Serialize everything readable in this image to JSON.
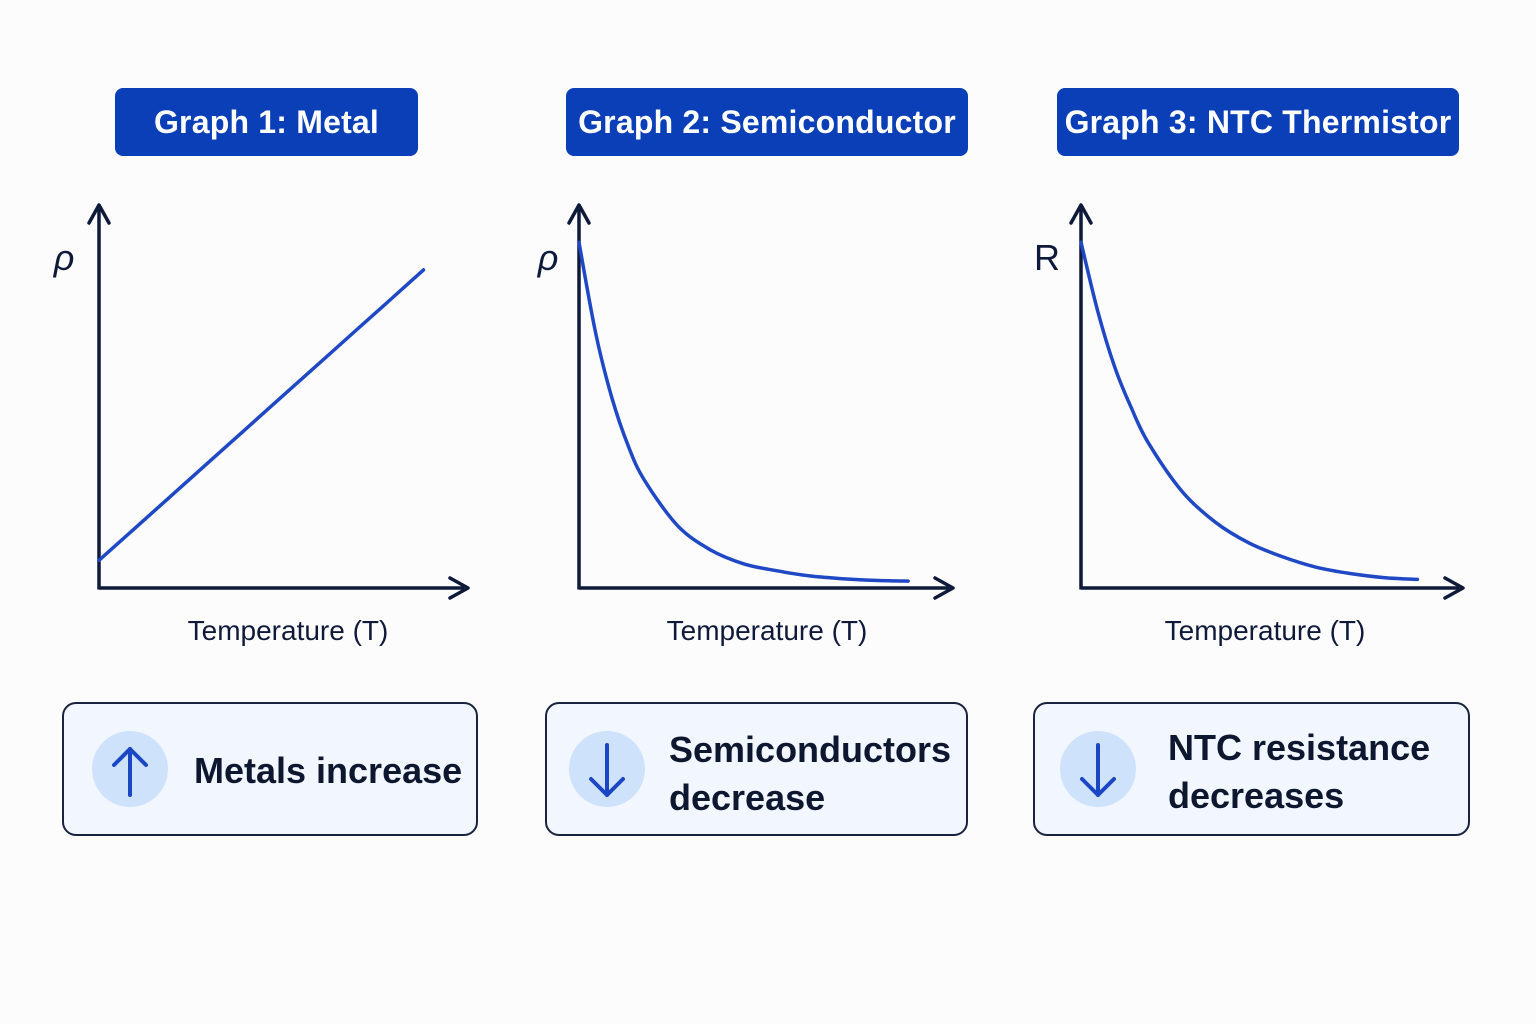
{
  "colors": {
    "accent": "#0a3fb8",
    "curve": "#1f48c4",
    "axis": "#0f1a3a",
    "card_bg": "#f2f6fe",
    "icon_bg": "#cfe2fb",
    "icon_stroke": "#1c47c4"
  },
  "chart_data": [
    {
      "type": "line",
      "title": "Graph 1: Metal",
      "xlabel": "Temperature (T)",
      "ylabel": "ρ",
      "x": [
        0,
        1,
        2,
        3,
        4,
        5,
        6,
        7,
        8,
        9,
        10
      ],
      "series": [
        {
          "values": [
            0.8,
            1.64,
            2.48,
            3.32,
            4.16,
            5.0,
            5.84,
            6.68,
            7.52,
            8.36,
            9.2
          ]
        }
      ],
      "xlim": [
        0,
        11
      ],
      "ylim": [
        0,
        10.5
      ],
      "grid": false
    },
    {
      "type": "line",
      "title": "Graph 2: Semiconductor",
      "xlabel": "Temperature (T)",
      "ylabel": "ρ",
      "x": [
        0,
        0.5,
        1,
        1.5,
        2,
        3,
        4,
        5,
        6,
        7,
        8,
        9,
        10
      ],
      "series": [
        {
          "values": [
            10,
            7.4,
            5.5,
            4.1,
            3.1,
            1.8,
            1.1,
            0.7,
            0.5,
            0.35,
            0.27,
            0.22,
            0.2
          ]
        }
      ],
      "xlim": [
        0,
        11
      ],
      "ylim": [
        0,
        10.5
      ],
      "grid": false
    },
    {
      "type": "line",
      "title": "Graph 3: NTC Thermistor",
      "xlabel": "Temperature (T)",
      "ylabel": "R",
      "x": [
        0,
        0.5,
        1,
        1.5,
        2,
        3,
        4,
        5,
        6,
        7,
        8,
        9,
        10
      ],
      "series": [
        {
          "values": [
            10,
            8.0,
            6.4,
            5.2,
            4.2,
            2.8,
            1.9,
            1.3,
            0.9,
            0.6,
            0.42,
            0.3,
            0.25
          ]
        }
      ],
      "xlim": [
        0,
        11
      ],
      "ylim": [
        0,
        10.5
      ],
      "grid": false
    }
  ],
  "cards": [
    {
      "text": "Metals increase",
      "icon": "arrow-up-icon"
    },
    {
      "text": "Semiconductors\ndecrease",
      "icon": "arrow-down-icon"
    },
    {
      "text": "NTC resistance\ndecreases",
      "icon": "arrow-down-icon"
    }
  ]
}
